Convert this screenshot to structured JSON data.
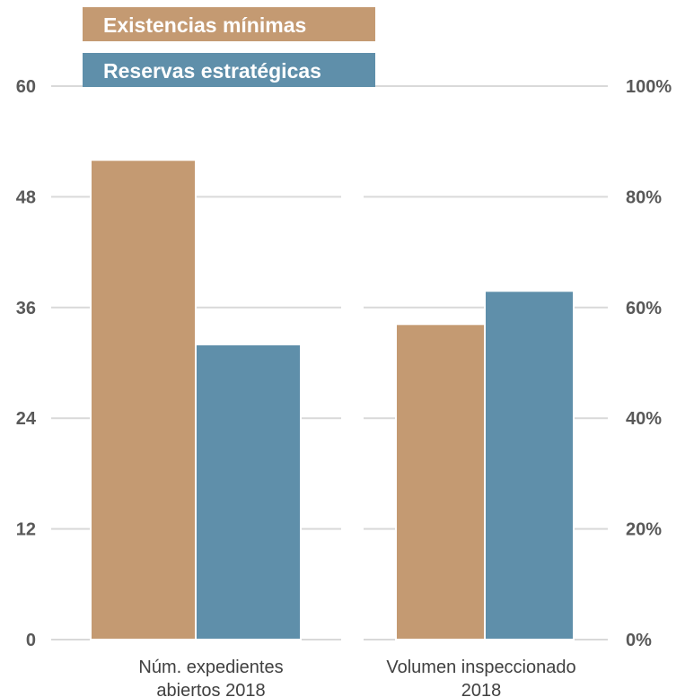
{
  "chart_data": {
    "type": "bar",
    "categories": [
      [
        "Núm. expedientes",
        "abiertos 2018"
      ],
      [
        "Volumen inspeccionado",
        "2018"
      ]
    ],
    "left_axis": {
      "ylim": [
        0,
        60
      ],
      "ticks": [
        "0",
        "12",
        "24",
        "36",
        "48",
        "60"
      ]
    },
    "right_axis": {
      "ylim": [
        0,
        100
      ],
      "ticks": [
        "0%",
        "20%",
        "40%",
        "60%",
        "80%",
        "100%"
      ]
    },
    "series": [
      {
        "name": "Existencias mínimas",
        "color": "#C49A72",
        "values": [
          52,
          57
        ]
      },
      {
        "name": "Reservas estratégicas",
        "color": "#5F8FAA",
        "values": [
          32,
          63
        ]
      }
    ],
    "value_axes": [
      "left",
      "right"
    ],
    "grid": true,
    "legend_position": "top-left"
  }
}
